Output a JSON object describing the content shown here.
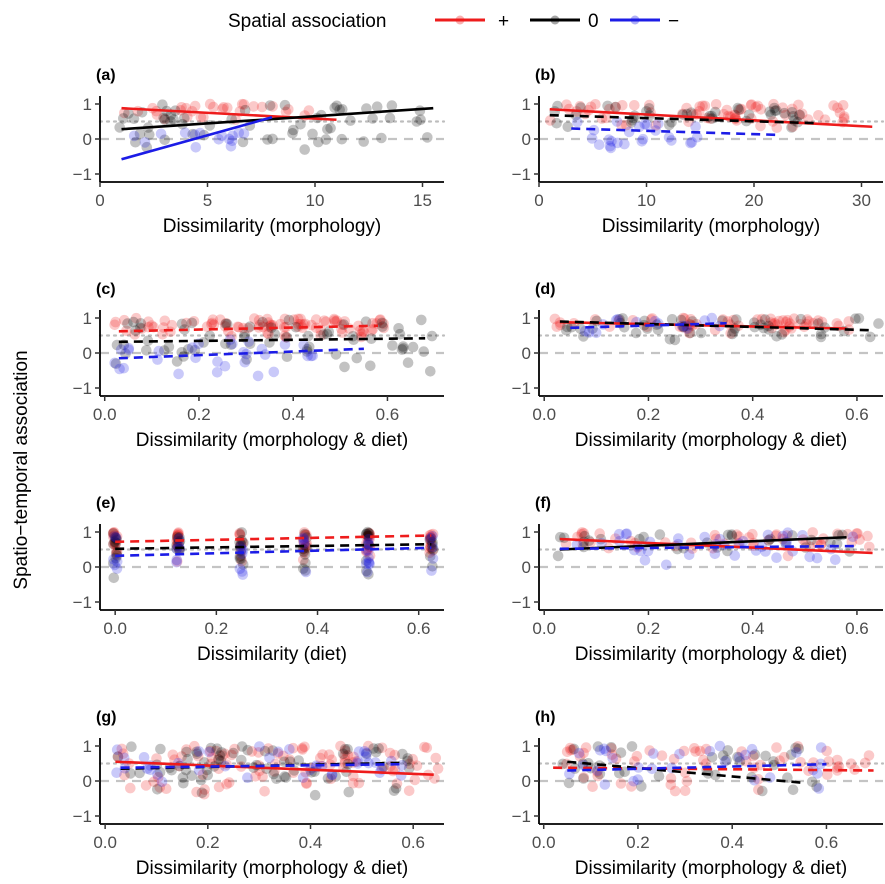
{
  "legend": {
    "title": "Spatial association",
    "items": [
      {
        "label": "+",
        "color": "#ee1c1c"
      },
      {
        "label": "0",
        "color": "#000000"
      },
      {
        "label": "−",
        "color": "#1c1ce6"
      }
    ]
  },
  "ylabel": "Spatio−temporal association",
  "chart_data": [
    {
      "id": "a",
      "tag": "(a)",
      "type": "scatter",
      "xlabel": "Dissimilarity (morphology)",
      "xlim": [
        0,
        16
      ],
      "ylim": [
        -1,
        1
      ],
      "xticks": [
        0,
        5,
        10,
        15
      ],
      "xtick_labels": [
        "0",
        "5",
        "10",
        "15"
      ],
      "yticks": [
        -1,
        0,
        1
      ],
      "ytick_labels": [
        "−1",
        "0",
        "1"
      ],
      "ref_lines": {
        "dotted": 0.5,
        "dashed": 0
      },
      "clouds": [
        {
          "series": "+",
          "xr": [
            1,
            10
          ],
          "yr": [
            0.5,
            1
          ],
          "n": 30
        },
        {
          "series": "0",
          "xr": [
            0.5,
            15.5
          ],
          "yr": [
            -0.4,
            1
          ],
          "n": 60
        },
        {
          "series": "−",
          "xr": [
            1.5,
            7
          ],
          "yr": [
            -0.6,
            0.2
          ],
          "n": 15
        }
      ],
      "trends": [
        {
          "series": "+",
          "dash": false,
          "x": [
            1,
            11
          ],
          "y": [
            0.88,
            0.55
          ]
        },
        {
          "series": "0",
          "dash": false,
          "x": [
            1,
            15.5
          ],
          "y": [
            0.28,
            0.88
          ]
        },
        {
          "series": "−",
          "dash": false,
          "x": [
            1,
            8
          ],
          "y": [
            -0.58,
            0.62
          ]
        }
      ]
    },
    {
      "id": "b",
      "tag": "(b)",
      "type": "scatter",
      "xlabel": "Dissimilarity (morphology)",
      "xlim": [
        0,
        32
      ],
      "ylim": [
        -1,
        1
      ],
      "xticks": [
        0,
        10,
        20,
        30
      ],
      "xtick_labels": [
        "0",
        "10",
        "20",
        "30"
      ],
      "yticks": [
        -1,
        0,
        1
      ],
      "ytick_labels": [
        "−1",
        "0",
        "1"
      ],
      "ref_lines": {
        "dotted": 0.5,
        "dashed": 0
      },
      "clouds": [
        {
          "series": "+",
          "xr": [
            1,
            30
          ],
          "yr": [
            0.3,
            1
          ],
          "n": 70
        },
        {
          "series": "0",
          "xr": [
            1,
            25
          ],
          "yr": [
            0.2,
            0.95
          ],
          "n": 40
        },
        {
          "series": "−",
          "xr": [
            3,
            15
          ],
          "yr": [
            -0.35,
            0.5
          ],
          "n": 25
        }
      ],
      "trends": [
        {
          "series": "+",
          "dash": false,
          "x": [
            1,
            31
          ],
          "y": [
            0.85,
            0.35
          ]
        },
        {
          "series": "0",
          "dash": true,
          "x": [
            1,
            26
          ],
          "y": [
            0.68,
            0.45
          ]
        },
        {
          "series": "−",
          "dash": true,
          "x": [
            3,
            22
          ],
          "y": [
            0.3,
            0.12
          ]
        }
      ]
    },
    {
      "id": "c",
      "tag": "(c)",
      "type": "scatter",
      "xlabel": "Dissimilarity (morphology & diet)",
      "xlim": [
        -0.01,
        0.72
      ],
      "ylim": [
        -1,
        1
      ],
      "xticks": [
        0,
        0.2,
        0.4,
        0.6
      ],
      "xtick_labels": [
        "0.0",
        "0.2",
        "0.4",
        "0.6"
      ],
      "yticks": [
        -1,
        0,
        1
      ],
      "ytick_labels": [
        "−1",
        "0",
        "1"
      ],
      "ref_lines": {
        "dotted": 0.5,
        "dashed": 0
      },
      "clouds": [
        {
          "series": "+",
          "xr": [
            0.02,
            0.6
          ],
          "yr": [
            0.35,
            1
          ],
          "n": 90
        },
        {
          "series": "0",
          "xr": [
            0.02,
            0.7
          ],
          "yr": [
            -0.6,
            0.95
          ],
          "n": 70
        },
        {
          "series": "−",
          "xr": [
            0.02,
            0.45
          ],
          "yr": [
            -0.7,
            0.4
          ],
          "n": 30
        }
      ],
      "trends": [
        {
          "series": "+",
          "dash": true,
          "x": [
            0.03,
            0.58
          ],
          "y": [
            0.62,
            0.78
          ]
        },
        {
          "series": "0",
          "dash": true,
          "x": [
            0.03,
            0.68
          ],
          "y": [
            0.32,
            0.42
          ]
        },
        {
          "series": "−",
          "dash": true,
          "x": [
            0.03,
            0.55
          ],
          "y": [
            -0.15,
            0.12
          ]
        }
      ]
    },
    {
      "id": "d",
      "tag": "(d)",
      "type": "scatter",
      "xlabel": "Dissimilarity (morphology & diet)",
      "xlim": [
        -0.01,
        0.65
      ],
      "ylim": [
        -1,
        1
      ],
      "xticks": [
        0,
        0.2,
        0.4,
        0.6
      ],
      "xtick_labels": [
        "0.0",
        "0.2",
        "0.4",
        "0.6"
      ],
      "yticks": [
        -1,
        0,
        1
      ],
      "ytick_labels": [
        "−1",
        "0",
        "1"
      ],
      "ref_lines": {
        "dotted": 0.5,
        "dashed": 0
      },
      "clouds": [
        {
          "series": "+",
          "xr": [
            0.02,
            0.6
          ],
          "yr": [
            0.55,
            1
          ],
          "n": 60
        },
        {
          "series": "0",
          "xr": [
            0.02,
            0.65
          ],
          "yr": [
            0.35,
            1
          ],
          "n": 50
        },
        {
          "series": "−",
          "xr": [
            0.05,
            0.35
          ],
          "yr": [
            0.5,
            1
          ],
          "n": 15
        }
      ],
      "trends": [
        {
          "series": "+",
          "dash": false,
          "x": [
            0.03,
            0.58
          ],
          "y": [
            0.88,
            0.7
          ]
        },
        {
          "series": "0",
          "dash": true,
          "x": [
            0.03,
            0.63
          ],
          "y": [
            0.9,
            0.65
          ]
        },
        {
          "series": "−",
          "dash": true,
          "x": [
            0.05,
            0.35
          ],
          "y": [
            0.72,
            0.85
          ]
        }
      ]
    },
    {
      "id": "e",
      "tag": "(e)",
      "type": "scatter",
      "xlabel": "Dissimilarity (diet)",
      "xlim": [
        -0.03,
        0.65
      ],
      "ylim": [
        -1,
        1
      ],
      "xticks": [
        0,
        0.2,
        0.4,
        0.6
      ],
      "xtick_labels": [
        "0.0",
        "0.2",
        "0.4",
        "0.6"
      ],
      "yticks": [
        -1,
        0,
        1
      ],
      "ytick_labels": [
        "−1",
        "0",
        "1"
      ],
      "ref_lines": {
        "dotted": 0.5,
        "dashed": 0
      },
      "discrete_x": [
        0,
        0.125,
        0.25,
        0.375,
        0.5,
        0.625
      ],
      "clouds": [
        {
          "series": "+",
          "yr": [
            0.1,
            1
          ],
          "n": 80
        },
        {
          "series": "0",
          "yr": [
            -0.4,
            1
          ],
          "n": 60
        },
        {
          "series": "−",
          "yr": [
            -0.3,
            0.9
          ],
          "n": 40
        }
      ],
      "trends": [
        {
          "series": "+",
          "dash": true,
          "x": [
            0,
            0.625
          ],
          "y": [
            0.72,
            0.9
          ]
        },
        {
          "series": "0",
          "dash": true,
          "x": [
            0,
            0.625
          ],
          "y": [
            0.52,
            0.65
          ]
        },
        {
          "series": "−",
          "dash": true,
          "x": [
            0,
            0.625
          ],
          "y": [
            0.32,
            0.55
          ]
        }
      ]
    },
    {
      "id": "f",
      "tag": "(f)",
      "type": "scatter",
      "xlabel": "Dissimilarity (morphology & diet)",
      "xlim": [
        -0.01,
        0.65
      ],
      "ylim": [
        -1,
        1
      ],
      "xticks": [
        0,
        0.2,
        0.4,
        0.6
      ],
      "xtick_labels": [
        "0.0",
        "0.2",
        "0.4",
        "0.6"
      ],
      "yticks": [
        -1,
        0,
        1
      ],
      "ytick_labels": [
        "−1",
        "0",
        "1"
      ],
      "ref_lines": {
        "dotted": 0.5,
        "dashed": 0
      },
      "clouds": [
        {
          "series": "+",
          "xr": [
            0.02,
            0.63
          ],
          "yr": [
            0.3,
            1
          ],
          "n": 50
        },
        {
          "series": "0",
          "xr": [
            0.02,
            0.6
          ],
          "yr": [
            0.2,
            0.95
          ],
          "n": 30
        },
        {
          "series": "−",
          "xr": [
            0.02,
            0.6
          ],
          "yr": [
            -0.1,
            1
          ],
          "n": 40
        }
      ],
      "trends": [
        {
          "series": "+",
          "dash": false,
          "x": [
            0.03,
            0.63
          ],
          "y": [
            0.8,
            0.4
          ]
        },
        {
          "series": "0",
          "dash": false,
          "x": [
            0.03,
            0.58
          ],
          "y": [
            0.5,
            0.85
          ]
        },
        {
          "series": "−",
          "dash": true,
          "x": [
            0.03,
            0.6
          ],
          "y": [
            0.52,
            0.6
          ]
        }
      ]
    },
    {
      "id": "g",
      "tag": "(g)",
      "type": "scatter",
      "xlabel": "Dissimilarity (morphology & diet)",
      "xlim": [
        -0.01,
        0.66
      ],
      "ylim": [
        -1,
        1
      ],
      "xticks": [
        0,
        0.2,
        0.4,
        0.6
      ],
      "xtick_labels": [
        "0.0",
        "0.2",
        "0.4",
        "0.6"
      ],
      "yticks": [
        -1,
        0,
        1
      ],
      "ytick_labels": [
        "−1",
        "0",
        "1"
      ],
      "ref_lines": {
        "dotted": 0.5,
        "dashed": 0
      },
      "clouds": [
        {
          "series": "+",
          "xr": [
            0.02,
            0.65
          ],
          "yr": [
            -0.5,
            1
          ],
          "n": 100
        },
        {
          "series": "0",
          "xr": [
            0.02,
            0.6
          ],
          "yr": [
            -0.5,
            1
          ],
          "n": 70
        },
        {
          "series": "−",
          "xr": [
            0.02,
            0.58
          ],
          "yr": [
            -0.2,
            1
          ],
          "n": 40
        }
      ],
      "trends": [
        {
          "series": "+",
          "dash": false,
          "x": [
            0.02,
            0.64
          ],
          "y": [
            0.55,
            0.18
          ]
        },
        {
          "series": "0",
          "dash": true,
          "x": [
            0.03,
            0.58
          ],
          "y": [
            0.35,
            0.52
          ]
        },
        {
          "series": "−",
          "dash": true,
          "x": [
            0.03,
            0.58
          ],
          "y": [
            0.38,
            0.48
          ]
        }
      ]
    },
    {
      "id": "h",
      "tag": "(h)",
      "type": "scatter",
      "xlabel": "Dissimilarity (morphology & diet)",
      "xlim": [
        -0.01,
        0.72
      ],
      "ylim": [
        -1,
        1
      ],
      "xticks": [
        0,
        0.2,
        0.4,
        0.6
      ],
      "xtick_labels": [
        "0.0",
        "0.2",
        "0.4",
        "0.6"
      ],
      "yticks": [
        -1,
        0,
        1
      ],
      "ytick_labels": [
        "−1",
        "0",
        "1"
      ],
      "ref_lines": {
        "dotted": 0.5,
        "dashed": 0
      },
      "clouds": [
        {
          "series": "+",
          "xr": [
            0.02,
            0.7
          ],
          "yr": [
            -0.5,
            1
          ],
          "n": 60
        },
        {
          "series": "0",
          "xr": [
            0.02,
            0.58
          ],
          "yr": [
            -0.5,
            1
          ],
          "n": 40
        },
        {
          "series": "−",
          "xr": [
            0.05,
            0.6
          ],
          "yr": [
            -0.3,
            1
          ],
          "n": 30
        }
      ],
      "trends": [
        {
          "series": "+",
          "dash": true,
          "x": [
            0.02,
            0.7
          ],
          "y": [
            0.38,
            0.3
          ]
        },
        {
          "series": "0",
          "dash": true,
          "x": [
            0.05,
            0.55
          ],
          "y": [
            0.55,
            -0.05
          ]
        },
        {
          "series": "−",
          "dash": true,
          "x": [
            0.05,
            0.6
          ],
          "y": [
            0.3,
            0.48
          ]
        }
      ]
    }
  ]
}
